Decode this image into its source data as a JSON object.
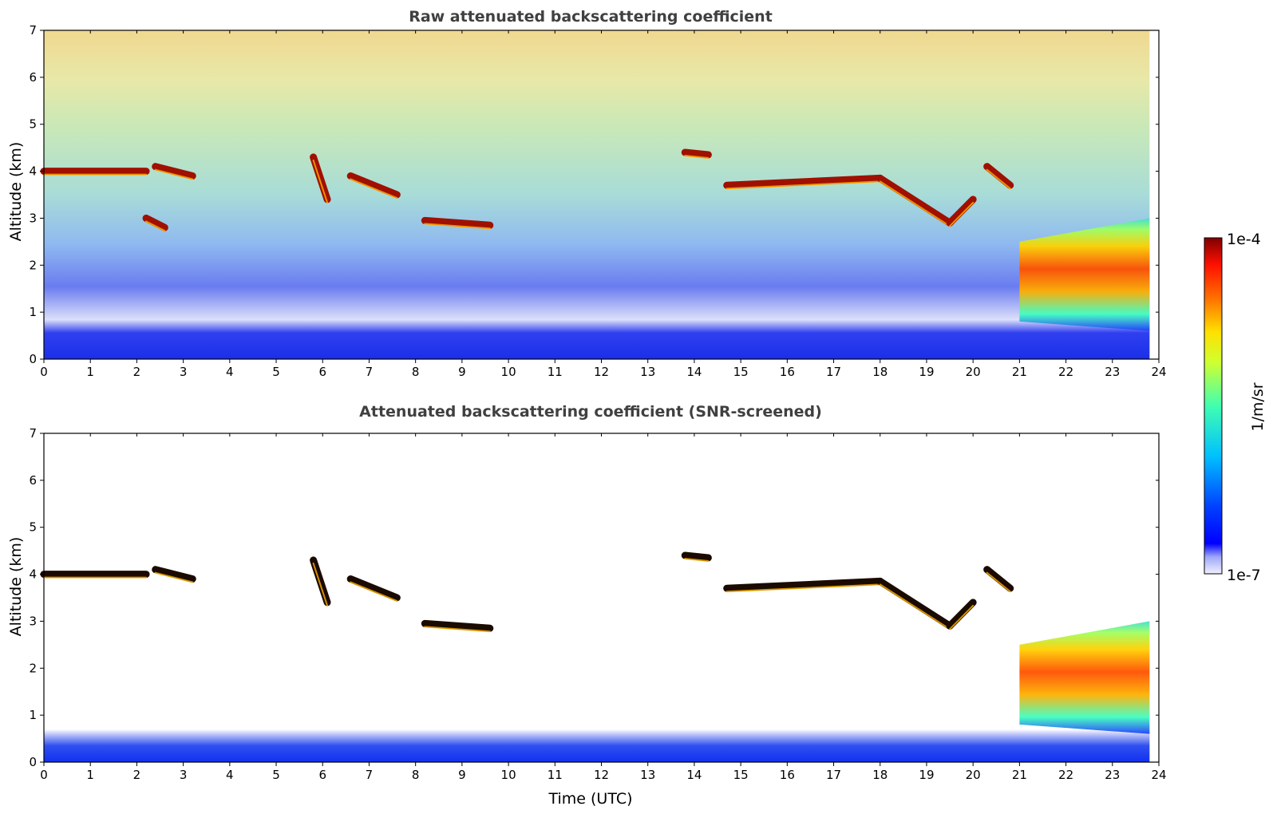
{
  "figure": {
    "colorbar": {
      "max_label": "1e-4",
      "min_label": "1e-7",
      "label": "1/m/sr",
      "scale": "log",
      "colormap": "jet"
    }
  },
  "chart_data": [
    {
      "type": "heatmap",
      "title": "Raw attenuated backscattering coefficient",
      "xlabel": "",
      "ylabel": "Altitude (km)",
      "xlim": [
        0,
        24
      ],
      "ylim": [
        0,
        7
      ],
      "xticks": [
        "0",
        "1",
        "2",
        "3",
        "4",
        "5",
        "6",
        "7",
        "8",
        "9",
        "10",
        "11",
        "12",
        "13",
        "14",
        "15",
        "16",
        "17",
        "18",
        "19",
        "20",
        "21",
        "22",
        "23",
        "24"
      ],
      "yticks": [
        "0",
        "1",
        "2",
        "3",
        "4",
        "5",
        "6",
        "7"
      ],
      "data_extent_x": [
        0,
        23.8
      ],
      "cloud_layers": [
        {
          "x": [
            0.0,
            2.2
          ],
          "y": [
            4.0,
            4.0
          ]
        },
        {
          "x": [
            2.4,
            3.2
          ],
          "y": [
            4.1,
            3.9
          ]
        },
        {
          "x": [
            2.2,
            2.6
          ],
          "y": [
            3.0,
            2.8
          ]
        },
        {
          "x": [
            5.8,
            6.1
          ],
          "y": [
            4.3,
            3.4
          ]
        },
        {
          "x": [
            6.6,
            7.6
          ],
          "y": [
            3.9,
            3.5
          ]
        },
        {
          "x": [
            8.2,
            9.6
          ],
          "y": [
            2.95,
            2.85
          ]
        },
        {
          "x": [
            13.8,
            14.3
          ],
          "y": [
            4.4,
            4.35
          ]
        },
        {
          "x": [
            14.7,
            18.0
          ],
          "y": [
            3.7,
            3.85
          ]
        },
        {
          "x": [
            18.0,
            19.5
          ],
          "y": [
            3.85,
            2.9
          ]
        },
        {
          "x": [
            19.5,
            20.0
          ],
          "y": [
            2.9,
            3.4
          ]
        },
        {
          "x": [
            20.3,
            20.8
          ],
          "y": [
            4.1,
            3.7
          ]
        }
      ],
      "aerosol_layer": {
        "x": [
          21.0,
          23.8
        ],
        "y_bottom": [
          0.8,
          0.6
        ],
        "y_top": [
          2.5,
          3.0
        ]
      },
      "noise_background": true
    },
    {
      "type": "heatmap",
      "title": "Attenuated backscattering coefficient (SNR-screened)",
      "xlabel": "Time (UTC)",
      "ylabel": "Altitude (km)",
      "xlim": [
        0,
        24
      ],
      "ylim": [
        0,
        7
      ],
      "xticks": [
        "0",
        "1",
        "2",
        "3",
        "4",
        "5",
        "6",
        "7",
        "8",
        "9",
        "10",
        "11",
        "12",
        "13",
        "14",
        "15",
        "16",
        "17",
        "18",
        "19",
        "20",
        "21",
        "22",
        "23",
        "24"
      ],
      "yticks": [
        "0",
        "1",
        "2",
        "3",
        "4",
        "5",
        "6",
        "7"
      ],
      "data_extent_x": [
        0,
        23.8
      ],
      "cloud_layers": [
        {
          "x": [
            0.0,
            2.2
          ],
          "y": [
            4.0,
            4.0
          ]
        },
        {
          "x": [
            2.4,
            3.2
          ],
          "y": [
            4.1,
            3.9
          ]
        },
        {
          "x": [
            5.8,
            6.1
          ],
          "y": [
            4.3,
            3.4
          ]
        },
        {
          "x": [
            6.6,
            7.6
          ],
          "y": [
            3.9,
            3.5
          ]
        },
        {
          "x": [
            8.2,
            9.6
          ],
          "y": [
            2.95,
            2.85
          ]
        },
        {
          "x": [
            13.8,
            14.3
          ],
          "y": [
            4.4,
            4.35
          ]
        },
        {
          "x": [
            14.7,
            18.0
          ],
          "y": [
            3.7,
            3.85
          ]
        },
        {
          "x": [
            18.0,
            19.5
          ],
          "y": [
            3.85,
            2.9
          ]
        },
        {
          "x": [
            19.5,
            20.0
          ],
          "y": [
            2.9,
            3.4
          ]
        },
        {
          "x": [
            20.3,
            20.8
          ],
          "y": [
            4.1,
            3.7
          ]
        }
      ],
      "aerosol_layer": {
        "x": [
          21.0,
          23.8
        ],
        "y_bottom": [
          0.8,
          0.6
        ],
        "y_top": [
          2.5,
          3.0
        ]
      },
      "noise_background": false
    }
  ]
}
